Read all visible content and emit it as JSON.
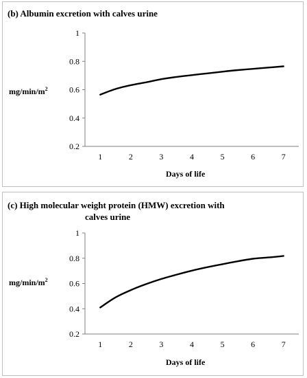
{
  "chart_data": [
    {
      "type": "line",
      "title": "(b) Albumin excretion with calves urine",
      "xlabel": "Days of life",
      "ylabel": "mg/min/m",
      "ylabel_sup": "2",
      "x": [
        1,
        1.5,
        2,
        2.5,
        3,
        3.5,
        4,
        4.5,
        5,
        5.5,
        6,
        6.5,
        7
      ],
      "series": [
        {
          "values": [
            0.565,
            0.605,
            0.632,
            0.652,
            0.674,
            0.69,
            0.703,
            0.715,
            0.727,
            0.738,
            0.747,
            0.756,
            0.765
          ]
        }
      ],
      "xlim": [
        0.5,
        7.5
      ],
      "ylim": [
        0.2,
        1
      ],
      "xticks": [
        1,
        2,
        3,
        4,
        5,
        6,
        7
      ],
      "yticks": [
        0.2,
        0.4,
        0.6,
        0.8,
        1
      ],
      "yticklabels": [
        "0.2",
        "0.4",
        "0.6",
        "0.8",
        "1"
      ],
      "grid": false,
      "color": "#000000"
    },
    {
      "type": "line",
      "title": "(c) High molecular weight protein (HMW) excretion with",
      "title_line2": "calves urine",
      "xlabel": "Days of life",
      "ylabel": "mg/min/m",
      "ylabel_sup": "2",
      "x": [
        1,
        1.5,
        2,
        2.5,
        3,
        3.5,
        4,
        4.5,
        5,
        5.5,
        6,
        6.5,
        7
      ],
      "series": [
        {
          "values": [
            0.41,
            0.49,
            0.548,
            0.595,
            0.636,
            0.67,
            0.702,
            0.729,
            0.753,
            0.776,
            0.796,
            0.806,
            0.818
          ]
        }
      ],
      "xlim": [
        0.5,
        7.5
      ],
      "ylim": [
        0.2,
        1
      ],
      "xticks": [
        1,
        2,
        3,
        4,
        5,
        6,
        7
      ],
      "yticks": [
        0.2,
        0.4,
        0.6,
        0.8,
        1
      ],
      "yticklabels": [
        "0.2",
        "0.4",
        "0.6",
        "0.8",
        "1"
      ],
      "grid": false,
      "color": "#000000"
    }
  ]
}
